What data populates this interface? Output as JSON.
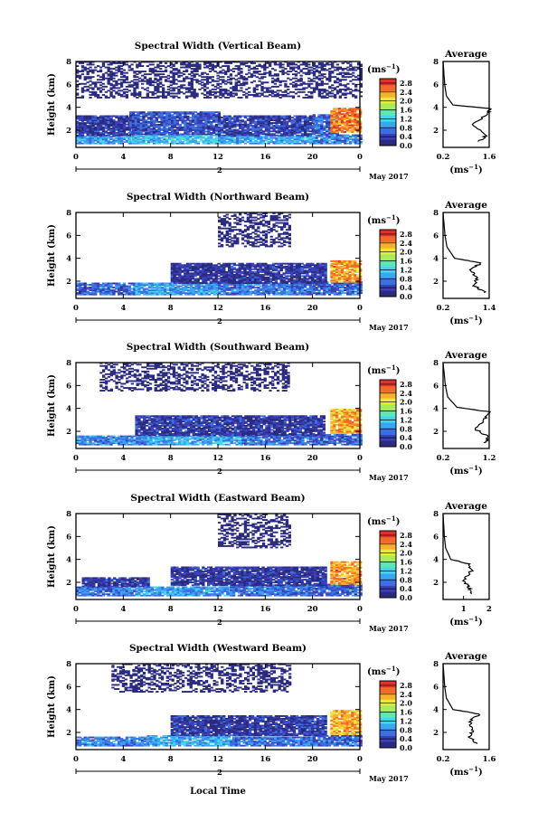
{
  "figure": {
    "xlabel": "Local Time",
    "date_label": "May 2017",
    "date_tick": "2",
    "unit_label": "(ms",
    "unit_exp": "−1",
    "avg_title": "Average"
  },
  "colormap": [
    "#2b2b80",
    "#3a40b8",
    "#3c6fe0",
    "#3aa6f2",
    "#45d4ee",
    "#5ee6b4",
    "#a8ec5a",
    "#e8e83e",
    "#f9b02c",
    "#f26a2a",
    "#e0322c"
  ],
  "chart_data": [
    {
      "type": "heatmap",
      "title": "Spectral Width (Vertical Beam)",
      "ylabel": "Height (km)",
      "xlim": [
        0,
        24
      ],
      "ylim": [
        0.5,
        8
      ],
      "xticks": [
        "0",
        "4",
        "8",
        "12",
        "16",
        "20",
        "0"
      ],
      "yticks": [
        "2",
        "4",
        "6",
        "8"
      ],
      "colorbar_ticks": [
        "0.0",
        "0.4",
        "0.8",
        "1.2",
        "1.6",
        "2.0",
        "2.4",
        "2.8"
      ],
      "colorbar_range": [
        0,
        3
      ],
      "regions": [
        {
          "x0": 0,
          "x1": 4.5,
          "y0": 0.8,
          "y1": 1.5,
          "v": 0.9
        },
        {
          "x0": 4.5,
          "x1": 12,
          "y0": 0.8,
          "y1": 1.6,
          "v": 1.1
        },
        {
          "x0": 12,
          "x1": 20,
          "y0": 0.8,
          "y1": 1.5,
          "v": 1.0
        },
        {
          "x0": 20,
          "x1": 24,
          "y0": 0.8,
          "y1": 1.6,
          "v": 0.8
        },
        {
          "x0": 0,
          "x1": 4.5,
          "y0": 1.5,
          "y1": 3.3,
          "v": 0.3
        },
        {
          "x0": 4.5,
          "x1": 12,
          "y0": 1.6,
          "y1": 3.6,
          "v": 0.45
        },
        {
          "x0": 12,
          "x1": 20,
          "y0": 1.5,
          "y1": 3.2,
          "v": 0.35
        },
        {
          "x0": 20,
          "x1": 22,
          "y0": 1.6,
          "y1": 3.4,
          "v": 0.6
        },
        {
          "x0": 21.5,
          "x1": 24,
          "y0": 1.8,
          "y1": 3.9,
          "v": 2.5
        },
        {
          "x0": 0,
          "x1": 24,
          "y0": 4.8,
          "y1": 8,
          "v": 0.1
        }
      ],
      "average": {
        "profile": [
          [
            1.0,
            1.3
          ],
          [
            1.5,
            1.5
          ],
          [
            2.5,
            1.1
          ],
          [
            3.5,
            1.6
          ],
          [
            3.9,
            1.6
          ],
          [
            4.2,
            0.5
          ],
          [
            5,
            0.3
          ],
          [
            6,
            0.25
          ],
          [
            8,
            0.2
          ]
        ],
        "xlim": [
          0.2,
          1.6
        ],
        "xticks": [
          "0.2",
          "1.6"
        ],
        "ylim": [
          0.5,
          8
        ],
        "yticks": [
          "2",
          "4",
          "6",
          "8"
        ],
        "xlabel_unit": "(ms",
        "xlabel_exp": "−1"
      }
    },
    {
      "type": "heatmap",
      "title": "Spectral Width (Northward Beam)",
      "ylabel": "Height (km)",
      "xlim": [
        0,
        24
      ],
      "ylim": [
        0.5,
        8
      ],
      "xticks": [
        "0",
        "4",
        "8",
        "12",
        "16",
        "20",
        "0"
      ],
      "yticks": [
        "2",
        "4",
        "6",
        "8"
      ],
      "colorbar_ticks": [
        "0.0",
        "0.4",
        "0.8",
        "1.2",
        "1.6",
        "2.0",
        "2.4",
        "2.8"
      ],
      "colorbar_range": [
        0,
        3
      ],
      "regions": [
        {
          "x0": 0,
          "x1": 5,
          "y0": 0.8,
          "y1": 1.8,
          "v": 0.6
        },
        {
          "x0": 5,
          "x1": 12,
          "y0": 0.8,
          "y1": 1.8,
          "v": 0.9
        },
        {
          "x0": 12,
          "x1": 20,
          "y0": 0.8,
          "y1": 1.8,
          "v": 0.7
        },
        {
          "x0": 20,
          "x1": 24,
          "y0": 0.8,
          "y1": 1.9,
          "v": 0.6
        },
        {
          "x0": 8,
          "x1": 21,
          "y0": 1.8,
          "y1": 3.5,
          "v": 0.25
        },
        {
          "x0": 21.5,
          "x1": 24,
          "y0": 1.9,
          "y1": 3.8,
          "v": 2.4
        },
        {
          "x0": 12,
          "x1": 18,
          "y0": 5.0,
          "y1": 8,
          "v": 0.15
        }
      ],
      "average": {
        "profile": [
          [
            1.0,
            1.3
          ],
          [
            1.6,
            1.0
          ],
          [
            2.3,
            1.1
          ],
          [
            3.0,
            0.9
          ],
          [
            3.6,
            1.2
          ],
          [
            4.0,
            0.5
          ],
          [
            5,
            0.3
          ],
          [
            6,
            0.25
          ],
          [
            8,
            0.2
          ]
        ],
        "xlim": [
          0.2,
          1.4
        ],
        "xticks": [
          "0.2",
          "1.4"
        ],
        "ylim": [
          0.5,
          8
        ],
        "yticks": [
          "2",
          "4",
          "6",
          "8"
        ],
        "xlabel_unit": "(ms",
        "xlabel_exp": "−1"
      }
    },
    {
      "type": "heatmap",
      "title": "Spectral Width (Southward Beam)",
      "ylabel": "Height (km)",
      "xlim": [
        0,
        24
      ],
      "ylim": [
        0.5,
        8
      ],
      "xticks": [
        "0",
        "4",
        "8",
        "12",
        "16",
        "20",
        "0"
      ],
      "yticks": [
        "2",
        "4",
        "6",
        "8"
      ],
      "colorbar_ticks": [
        "0.0",
        "0.4",
        "0.8",
        "1.2",
        "1.6",
        "2.0",
        "2.4",
        "2.8"
      ],
      "colorbar_range": [
        0,
        3
      ],
      "regions": [
        {
          "x0": 0,
          "x1": 6,
          "y0": 0.8,
          "y1": 1.6,
          "v": 0.8
        },
        {
          "x0": 6,
          "x1": 14,
          "y0": 0.8,
          "y1": 1.6,
          "v": 1.0
        },
        {
          "x0": 14,
          "x1": 20,
          "y0": 0.8,
          "y1": 1.7,
          "v": 0.7
        },
        {
          "x0": 20,
          "x1": 24,
          "y0": 0.8,
          "y1": 1.7,
          "v": 0.6
        },
        {
          "x0": 5,
          "x1": 21,
          "y0": 1.6,
          "y1": 3.4,
          "v": 0.3
        },
        {
          "x0": 21.5,
          "x1": 24,
          "y0": 1.8,
          "y1": 3.9,
          "v": 2.3
        },
        {
          "x0": 2,
          "x1": 18,
          "y0": 5.5,
          "y1": 8,
          "v": 0.1
        }
      ],
      "average": {
        "profile": [
          [
            1.0,
            1.1
          ],
          [
            1.5,
            1.2
          ],
          [
            2.2,
            0.9
          ],
          [
            3.0,
            1.1
          ],
          [
            3.7,
            1.2
          ],
          [
            4.1,
            0.5
          ],
          [
            5,
            0.3
          ],
          [
            6,
            0.25
          ],
          [
            8,
            0.2
          ]
        ],
        "xlim": [
          0.2,
          1.2
        ],
        "xticks": [
          "0.2",
          "1.2"
        ],
        "ylim": [
          0.5,
          8
        ],
        "yticks": [
          "2",
          "4",
          "6",
          "8"
        ],
        "xlabel_unit": "(ms",
        "xlabel_exp": "−1"
      }
    },
    {
      "type": "heatmap",
      "title": "Spectral Width (Eastward Beam)",
      "ylabel": "Height (km)",
      "xlim": [
        0,
        24
      ],
      "ylim": [
        0.5,
        8
      ],
      "xticks": [
        "0",
        "4",
        "8",
        "12",
        "16",
        "20",
        "0"
      ],
      "yticks": [
        "2",
        "4",
        "6",
        "8"
      ],
      "colorbar_ticks": [
        "0.0",
        "0.4",
        "0.8",
        "1.2",
        "1.6",
        "2.0",
        "2.4",
        "2.8"
      ],
      "colorbar_range": [
        0,
        3
      ],
      "regions": [
        {
          "x0": 0,
          "x1": 5,
          "y0": 0.8,
          "y1": 1.6,
          "v": 0.7
        },
        {
          "x0": 5,
          "x1": 13,
          "y0": 0.8,
          "y1": 1.6,
          "v": 0.9
        },
        {
          "x0": 13,
          "x1": 20,
          "y0": 0.8,
          "y1": 1.7,
          "v": 0.7
        },
        {
          "x0": 20,
          "x1": 24,
          "y0": 0.8,
          "y1": 1.8,
          "v": 0.6
        },
        {
          "x0": 0.5,
          "x1": 6,
          "y0": 1.6,
          "y1": 2.4,
          "v": 0.3
        },
        {
          "x0": 8,
          "x1": 21,
          "y0": 1.7,
          "y1": 3.3,
          "v": 0.25
        },
        {
          "x0": 21.5,
          "x1": 24,
          "y0": 1.8,
          "y1": 3.8,
          "v": 2.4
        },
        {
          "x0": 12,
          "x1": 18,
          "y0": 5.0,
          "y1": 8,
          "v": 0.12
        }
      ],
      "average": {
        "profile": [
          [
            1.0,
            1.3
          ],
          [
            1.6,
            1.2
          ],
          [
            2.2,
            1.0
          ],
          [
            3.0,
            1.3
          ],
          [
            3.6,
            1.2
          ],
          [
            4.0,
            0.5
          ],
          [
            5,
            0.3
          ],
          [
            6,
            0.25
          ],
          [
            8,
            0.2
          ]
        ],
        "xlim": [
          0.2,
          2.0
        ],
        "xticks": [
          "1",
          "2"
        ],
        "ylim": [
          0.5,
          8
        ],
        "yticks": [
          "2",
          "4",
          "6",
          "8"
        ],
        "xlabel_unit": "(ms",
        "xlabel_exp": "−1"
      }
    },
    {
      "type": "heatmap",
      "title": "Spectral Width (Westward Beam)",
      "ylabel": "Height (km)",
      "xlim": [
        0,
        24
      ],
      "ylim": [
        0.5,
        8
      ],
      "xticks": [
        "0",
        "4",
        "8",
        "12",
        "16",
        "20",
        "0"
      ],
      "yticks": [
        "2",
        "4",
        "6",
        "8"
      ],
      "colorbar_ticks": [
        "0.0",
        "0.4",
        "0.8",
        "1.2",
        "1.6",
        "2.0",
        "2.4",
        "2.8"
      ],
      "colorbar_range": [
        0,
        3
      ],
      "regions": [
        {
          "x0": 0,
          "x1": 6,
          "y0": 0.8,
          "y1": 1.6,
          "v": 0.8
        },
        {
          "x0": 6,
          "x1": 13,
          "y0": 0.8,
          "y1": 1.7,
          "v": 1.0
        },
        {
          "x0": 13,
          "x1": 20,
          "y0": 0.8,
          "y1": 1.6,
          "v": 0.7
        },
        {
          "x0": 20,
          "x1": 24,
          "y0": 0.8,
          "y1": 1.7,
          "v": 0.6
        },
        {
          "x0": 8,
          "x1": 21,
          "y0": 1.7,
          "y1": 3.5,
          "v": 0.3
        },
        {
          "x0": 21.5,
          "x1": 24,
          "y0": 1.8,
          "y1": 3.9,
          "v": 2.3
        },
        {
          "x0": 3,
          "x1": 18,
          "y0": 5.5,
          "y1": 8,
          "v": 0.1
        }
      ],
      "average": {
        "profile": [
          [
            1.0,
            1.2
          ],
          [
            1.6,
            1.0
          ],
          [
            2.3,
            1.1
          ],
          [
            3.0,
            1.0
          ],
          [
            3.6,
            1.3
          ],
          [
            4.0,
            0.5
          ],
          [
            5,
            0.3
          ],
          [
            6,
            0.25
          ],
          [
            8,
            0.2
          ]
        ],
        "xlim": [
          0.2,
          1.6
        ],
        "xticks": [
          "0.2",
          "1.6"
        ],
        "ylim": [
          0.5,
          8
        ],
        "yticks": [
          "2",
          "4",
          "6",
          "8"
        ],
        "xlabel_unit": "(ms",
        "xlabel_exp": "−1"
      }
    }
  ]
}
